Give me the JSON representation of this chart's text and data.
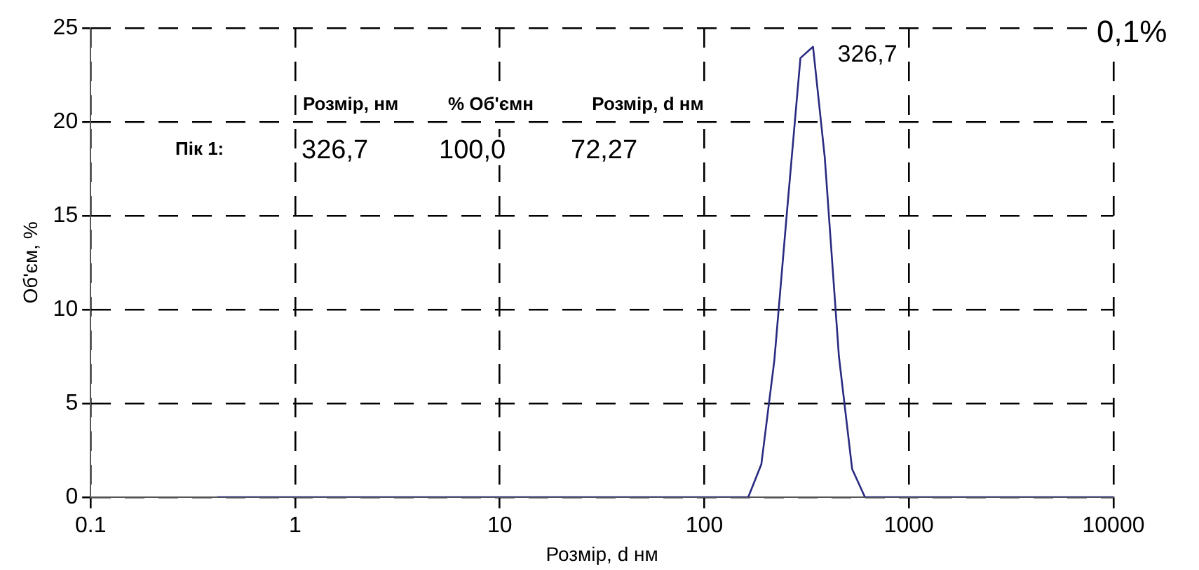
{
  "chart_data": {
    "type": "line",
    "xlabel": "Розмір, d нм",
    "ylabel": "Об'єм, %",
    "x": [
      0.416,
      164,
      190,
      220,
      254,
      295,
      340,
      388,
      455,
      528,
      610,
      10000
    ],
    "series": [
      {
        "color": "#2a2a80",
        "values": [
          0,
          0,
          1.75,
          7.3,
          15.3,
          23.4,
          24.0,
          18.1,
          7.5,
          1.5,
          0,
          0
        ]
      }
    ],
    "log": "x",
    "xlim": [
      0.1,
      10000
    ],
    "xticks": [
      0.1,
      1,
      10,
      100,
      1000,
      10000
    ],
    "ylim": [
      0,
      25
    ],
    "yticks": [
      0,
      5,
      10,
      15,
      20,
      25
    ],
    "grid": true,
    "line_style": "solid",
    "marker": "none",
    "legend": false,
    "annotations": [
      {
        "text": "326,7",
        "x": 326.7,
        "y": 24
      },
      "0,1%",
      "Розмір, нм",
      "% Об'ємн",
      "Розмір, d нм",
      "Пік 1:",
      "326,7",
      "100,0",
      "72,27"
    ]
  }
}
